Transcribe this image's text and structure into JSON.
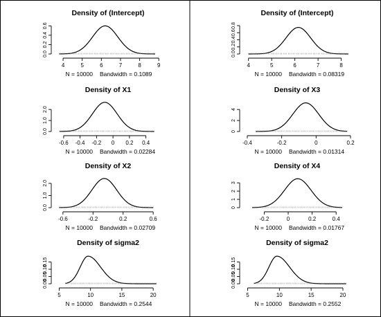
{
  "chart_data": [
    {
      "type": "line",
      "title": "Density of (Intercept)",
      "n_label": "N = 10000",
      "bw_label": "Bandwidth = 0.1089",
      "xlim": [
        3.6,
        9.1
      ],
      "ylim": [
        0,
        0.62
      ],
      "xticks": [
        4,
        5,
        6,
        7,
        8,
        9
      ],
      "yticks": [
        0.0,
        0.2,
        0.4,
        0.6
      ],
      "ytick_labels": [
        "0.0",
        "0.2",
        "0.4",
        "0.6"
      ],
      "mean": 6.2,
      "sd": 0.66,
      "x_range": [
        3.8,
        8.8
      ],
      "peak": 0.6
    },
    {
      "type": "line",
      "title": "Density of (Intercept)",
      "n_label": "N = 10000",
      "bw_label": "Bandwidth = 0.08319",
      "xlim": [
        3.8,
        8.4
      ],
      "ylim": [
        0,
        0.82
      ],
      "xticks": [
        4,
        5,
        6,
        7,
        8
      ],
      "yticks": [
        0.0,
        0.2,
        0.4,
        0.6,
        0.8
      ],
      "ytick_labels": [
        "0.0",
        "0.2",
        "0.4",
        "0.6",
        "0.8"
      ],
      "mean": 6.15,
      "sd": 0.53,
      "x_range": [
        4.0,
        8.3
      ],
      "peak": 0.75
    },
    {
      "type": "line",
      "title": "Density of X1",
      "n_label": "N = 10000",
      "bw_label": "Bandwidth = 0.02284",
      "xlim": [
        -0.7,
        0.58
      ],
      "ylim": [
        0,
        2.7
      ],
      "xticks": [
        -0.6,
        -0.4,
        -0.2,
        0.0,
        0.2,
        0.4
      ],
      "yticks": [
        0.0,
        1.0,
        2.0
      ],
      "ytick_labels": [
        "0.0",
        "1.0",
        "2.0"
      ],
      "mean": -0.1,
      "sd": 0.15,
      "x_range": [
        -0.65,
        0.5
      ],
      "peak": 2.65
    },
    {
      "type": "line",
      "title": "Density of X3",
      "n_label": "N = 10000",
      "bw_label": "Bandwidth = 0.01314",
      "xlim": [
        -0.42,
        0.2
      ],
      "ylim": [
        0,
        5.4
      ],
      "xticks": [
        -0.4,
        -0.2,
        0.0,
        0.2
      ],
      "yticks": [
        0,
        2,
        4
      ],
      "ytick_labels": [
        "0",
        "2",
        "4"
      ],
      "mean": -0.06,
      "sd": 0.075,
      "x_range": [
        -0.35,
        0.18
      ],
      "peak": 5.2
    },
    {
      "type": "line",
      "title": "Density of X2",
      "n_label": "N = 10000",
      "bw_label": "Bandwidth = 0.02709",
      "xlim": [
        -0.7,
        0.7
      ],
      "ylim": [
        0,
        2.45
      ],
      "xticks": [
        -0.6,
        -0.2,
        0.2,
        0.6
      ],
      "yticks": [
        0.0,
        1.0,
        2.0
      ],
      "ytick_labels": [
        "0.0",
        "1.0",
        "2.0"
      ],
      "mean": -0.05,
      "sd": 0.165,
      "x_range": [
        -0.65,
        0.6
      ],
      "peak": 2.4
    },
    {
      "type": "line",
      "title": "Density of X4",
      "n_label": "N = 10000",
      "bw_label": "Bandwidth = 0.01767",
      "xlim": [
        -0.37,
        0.52
      ],
      "ylim": [
        0,
        3.6
      ],
      "xticks": [
        -0.2,
        0.0,
        0.2,
        0.4
      ],
      "yticks": [
        0,
        1,
        2,
        3
      ],
      "ytick_labels": [
        "0",
        "1",
        "2",
        "3"
      ],
      "mean": 0.08,
      "sd": 0.11,
      "x_range": [
        -0.3,
        0.45
      ],
      "peak": 3.5
    },
    {
      "type": "line",
      "title": "Density of sigma2",
      "n_label": "N = 10000",
      "bw_label": "Bandwidth = 0.2544",
      "xlim": [
        4.4,
        21.2
      ],
      "ylim": [
        0,
        0.2
      ],
      "xticks": [
        5,
        10,
        15,
        20
      ],
      "yticks": [
        0.0,
        0.05,
        0.1,
        0.15
      ],
      "ytick_labels": [
        "0.00",
        "0.05",
        "0.10",
        "0.15"
      ],
      "mode": 9.6,
      "sd_left": 1.25,
      "sd_right": 2.0,
      "x_range": [
        6.0,
        20.5
      ],
      "peak": 0.19
    },
    {
      "type": "line",
      "title": "Density of sigma2",
      "n_label": "N = 10000",
      "bw_label": "Bandwidth = 0.2552",
      "xlim": [
        4.4,
        21.2
      ],
      "ylim": [
        0,
        0.2
      ],
      "xticks": [
        5,
        10,
        15,
        20
      ],
      "yticks": [
        0.0,
        0.05,
        0.1,
        0.15
      ],
      "ytick_labels": [
        "0.00",
        "0.05",
        "0.10",
        "0.15"
      ],
      "mode": 9.6,
      "sd_left": 1.25,
      "sd_right": 2.0,
      "x_range": [
        6.0,
        20.5
      ],
      "peak": 0.19
    }
  ]
}
